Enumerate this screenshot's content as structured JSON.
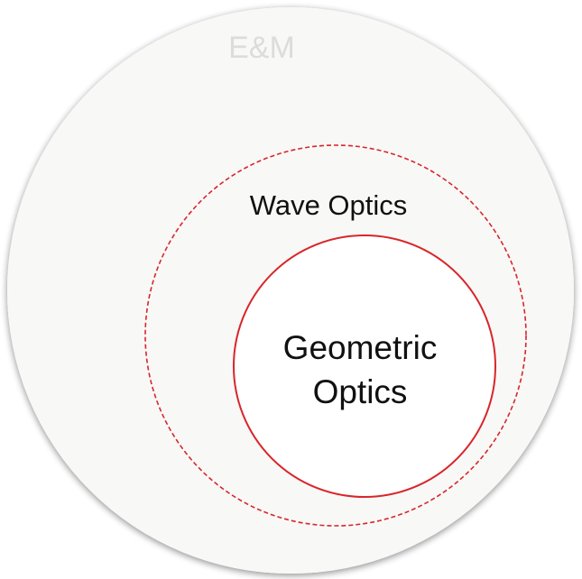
{
  "diagram": {
    "outer": {
      "label": "E&M"
    },
    "middle": {
      "label": "Wave Optics"
    },
    "inner": {
      "label_line1": "Geometric",
      "label_line2": "Optics"
    }
  },
  "colors": {
    "background": "#ffffff",
    "outer_fill": "#f8f8f7",
    "outer_label": "#dcdcdc",
    "accent_red": "#d8262a",
    "inner_fill": "#ffffff",
    "text": "#111111"
  }
}
